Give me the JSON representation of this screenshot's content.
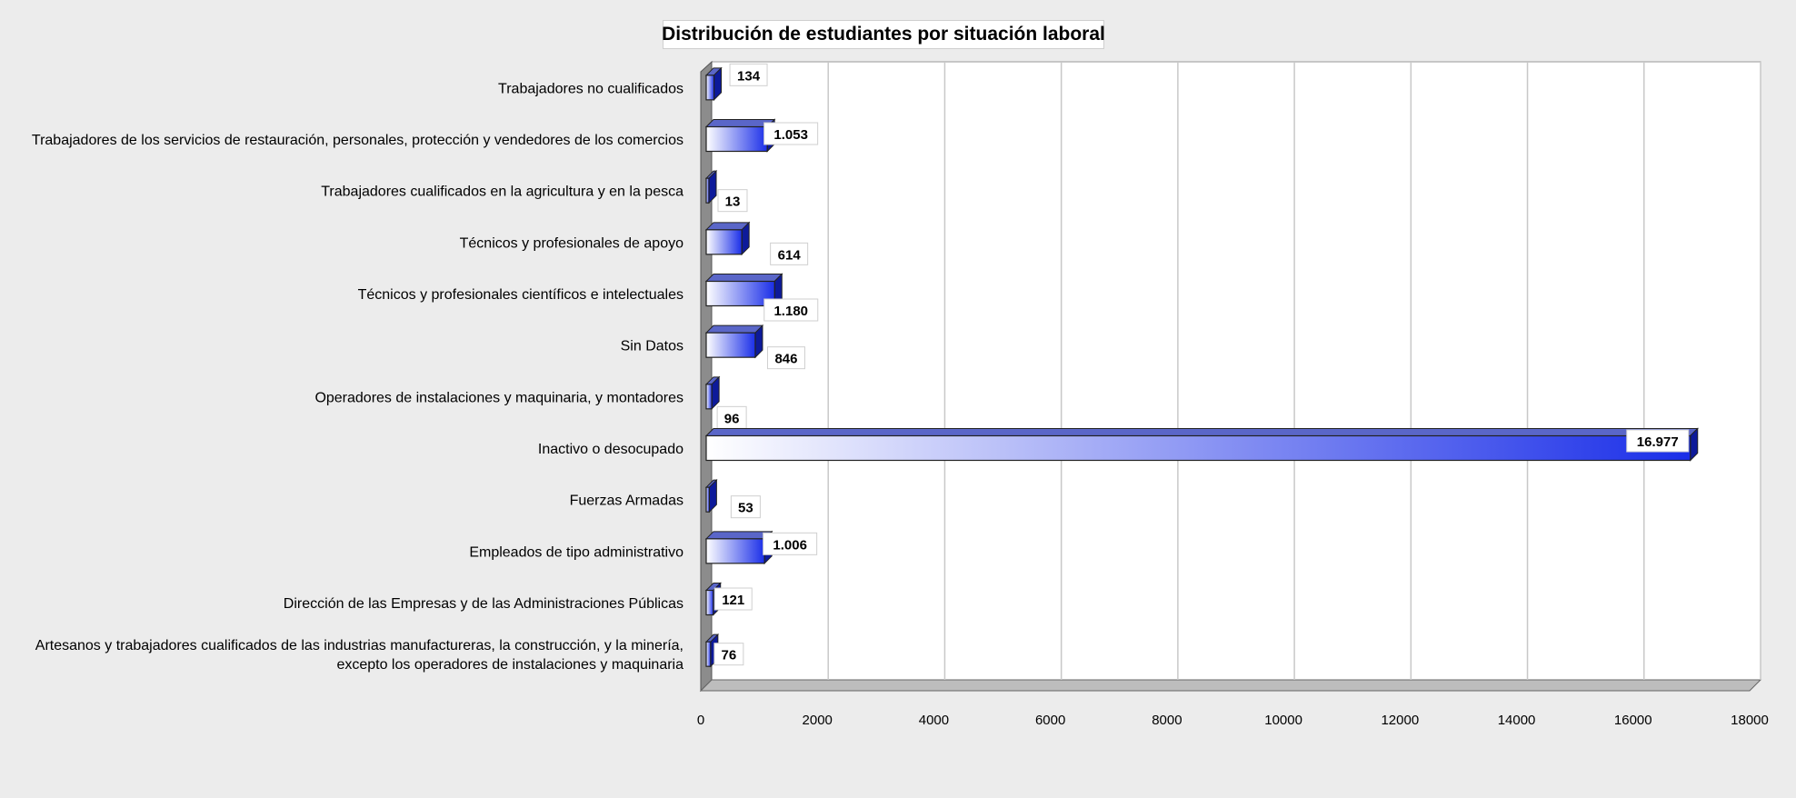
{
  "chart_data": {
    "type": "bar",
    "orientation": "horizontal",
    "title": "Distribución de estudiantes por situación laboral",
    "xlabel": "",
    "ylabel": "",
    "xlim": [
      0,
      18000
    ],
    "x_ticks": [
      0,
      2000,
      4000,
      6000,
      8000,
      10000,
      12000,
      14000,
      16000,
      18000
    ],
    "grid": true,
    "legend": "none",
    "colors": {
      "bar_light": "#ffffff",
      "bar_dark": "#1a2ee8",
      "bar_top": "#5a66c8",
      "bar_side": "#0d1a9a",
      "plot_bg": "#ffffff",
      "grid": "#c8c8c8",
      "wall": "#8c8c8c"
    },
    "categories": [
      "Trabajadores no cualificados",
      "Trabajadores de los servicios de restauración, personales, protección y vendedores de los comercios",
      "Trabajadores cualificados en la agricultura y en la pesca",
      "Técnicos y profesionales de apoyo",
      "Técnicos y profesionales científicos e intelectuales",
      "Sin Datos",
      "Operadores de instalaciones y maquinaria, y montadores",
      "Inactivo o desocupado",
      "Fuerzas Armadas",
      "Empleados de tipo administrativo",
      "Dirección de las Empresas y de las Administraciones Públicas",
      "Artesanos y trabajadores cualificados de las industrias manufactureras, la construcción, y la minería, excepto los operadores de instalaciones y maquinaria"
    ],
    "category_lines": [
      [
        "Trabajadores no cualificados"
      ],
      [
        "Trabajadores de los servicios de restauración, personales, protección y vendedores de los comercios"
      ],
      [
        "Trabajadores cualificados en la agricultura y en la pesca"
      ],
      [
        "Técnicos y profesionales de apoyo"
      ],
      [
        "Técnicos y profesionales científicos e intelectuales"
      ],
      [
        "Sin Datos"
      ],
      [
        "Operadores de instalaciones y maquinaria, y montadores"
      ],
      [
        "Inactivo o desocupado"
      ],
      [
        "Fuerzas Armadas"
      ],
      [
        "Empleados de tipo administrativo"
      ],
      [
        "Dirección de las Empresas y de las Administraciones Públicas"
      ],
      [
        "Artesanos y trabajadores cualificados de las industrias manufactureras, la construcción, y la minería,",
        "excepto los operadores de instalaciones y maquinaria"
      ]
    ],
    "values": [
      134,
      1053,
      13,
      614,
      1180,
      846,
      96,
      16977,
      53,
      1006,
      121,
      76
    ],
    "data_labels": [
      "134",
      "1.053",
      "13",
      "614",
      "1.180",
      "846",
      "96",
      "16.977",
      "53",
      "1.006",
      "121",
      "76"
    ]
  }
}
